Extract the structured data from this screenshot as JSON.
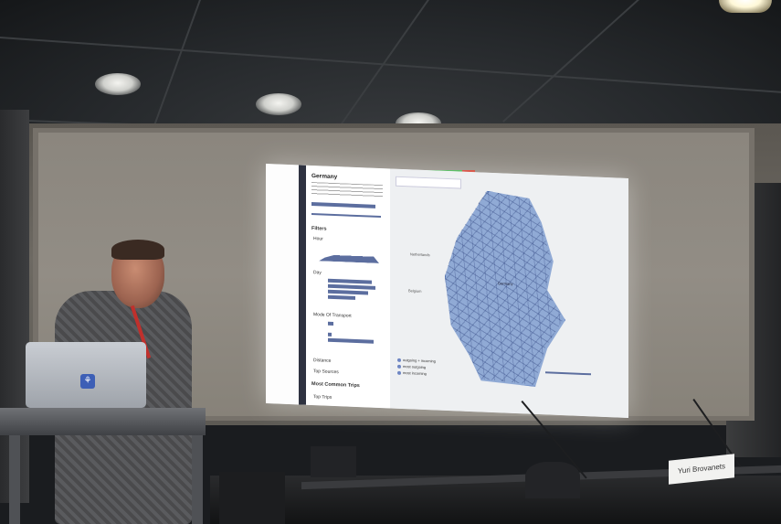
{
  "slide": {
    "panel_title": "Germany",
    "filters_heading": "Filters",
    "section_hour": "Hour",
    "section_day": "Day",
    "section_mode": "Mode Of Transport",
    "section_distance": "Distance",
    "section_top_sources": "Top Sources",
    "section_common_trips": "Most Common Trips",
    "section_top_trips": "Top Trips",
    "map_country_label": "Germany",
    "legend_items": [
      "outgoing + incoming",
      "most outgoing",
      "most incoming"
    ],
    "city_labels": [
      "Netherlands",
      "Belgium"
    ]
  },
  "room": {
    "nameplate_text": "Yuri Brovanets"
  },
  "colors": {
    "map_fill": "#7696cd",
    "slide_bar": "#2e3240",
    "status_green": "#3fb34a",
    "status_red": "#d33b2c"
  }
}
